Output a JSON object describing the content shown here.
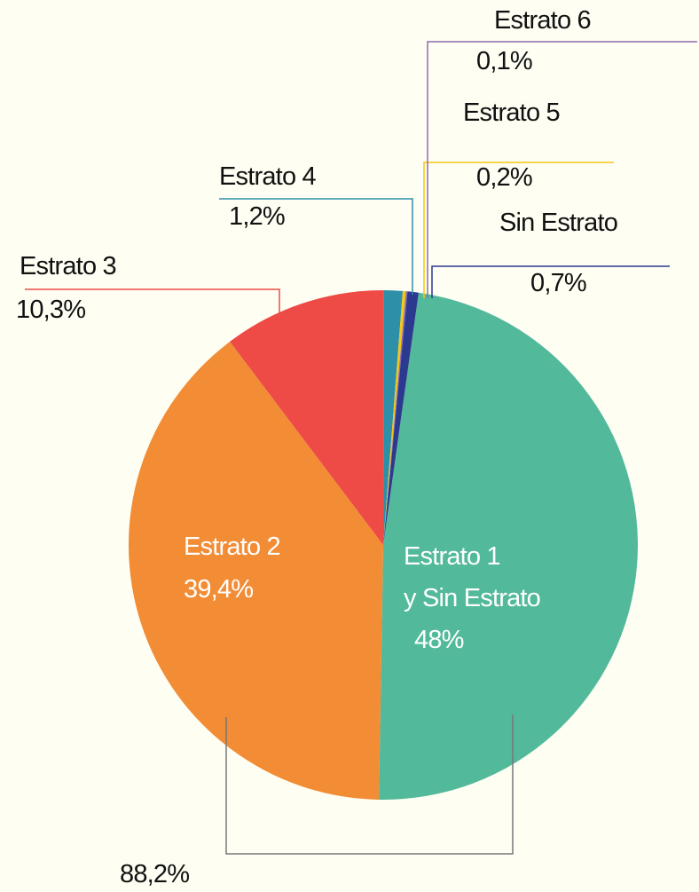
{
  "chart_data": {
    "type": "pie",
    "categories": [
      "Estrato 1\ny Sin Estrato",
      "Estrato 2",
      "Estrato 3",
      "Estrato 4",
      "Estrato 5",
      "Estrato 6",
      "Sin Estrato"
    ],
    "values": [
      48,
      39.4,
      10.3,
      1.2,
      0.2,
      0.1,
      0.7
    ],
    "value_labels": [
      "48%",
      "39,4%",
      "10,3%",
      "1,2%",
      "0,2%",
      "0,1%",
      "0,7%"
    ],
    "colors": [
      "#52b99b",
      "#f28c35",
      "#ee4b47",
      "#2e8fa8",
      "#f5c518",
      "#8e6bb0",
      "#2b3a8f"
    ],
    "annotations": [
      "88,2%"
    ]
  }
}
